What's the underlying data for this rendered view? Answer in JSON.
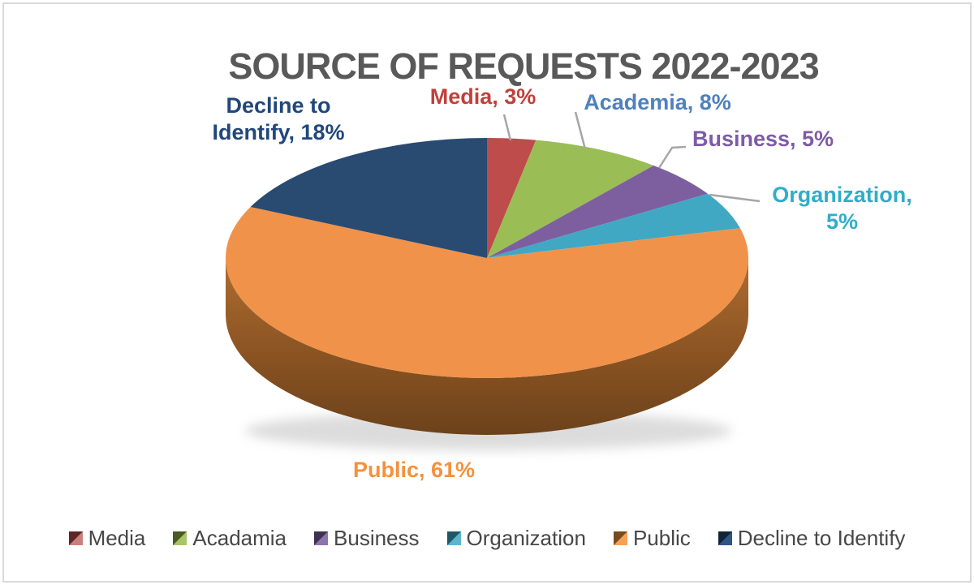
{
  "title": "SOURCE OF REQUESTS 2022-2023",
  "chart_data": {
    "type": "pie",
    "title": "SOURCE OF REQUESTS 2022-2023",
    "effect": "3d",
    "start_angle_deg": 0,
    "direction": "clockwise",
    "unit": "%",
    "slices": [
      {
        "label": "Media",
        "value": 3,
        "color": "#BE4C4B",
        "label_color": "#C0403B"
      },
      {
        "label": "Academia",
        "value": 8,
        "color": "#9BBD56",
        "label_color": "#4E81BD"
      },
      {
        "label": "Business",
        "value": 5,
        "color": "#7D5FA0",
        "label_color": "#7E5BA5"
      },
      {
        "label": "Organization",
        "value": 5,
        "color": "#41A8C4",
        "label_color": "#2FAEC8"
      },
      {
        "label": "Public",
        "value": 61,
        "color": "#F0924A",
        "label_color": "#F5913D"
      },
      {
        "label": "Decline to Identify",
        "value": 18,
        "color": "#294A71",
        "label_color": "#21477B"
      }
    ],
    "legend_position": "bottom",
    "grid": false
  },
  "data_labels": {
    "media": "Media, 3%",
    "academia": "Academia, 8%",
    "business": "Business, 5%",
    "organization_line1": "Organization,",
    "organization_line2": "5%",
    "public": "Public, 61%",
    "decline_line1": "Decline to",
    "decline_line2": "Identify, 18%"
  },
  "legend": {
    "items": [
      {
        "label": "Media",
        "swatch_dark": "#5E2626",
        "swatch_light": "#C97F7E"
      },
      {
        "label": "Acadamia",
        "swatch_dark": "#4A5A20",
        "swatch_light": "#A8C468"
      },
      {
        "label": "Business",
        "swatch_dark": "#3F3151",
        "swatch_light": "#8E74AE"
      },
      {
        "label": "Organization",
        "swatch_dark": "#1E5864",
        "swatch_light": "#5BB6CD"
      },
      {
        "label": "Public",
        "swatch_dark": "#7A4A1D",
        "swatch_light": "#F5A258"
      },
      {
        "label": "Decline to Identify",
        "swatch_dark": "#102437",
        "swatch_light": "#2F5584"
      }
    ]
  },
  "colors": {
    "title": "#595959",
    "legend_text": "#474747",
    "leader_line": "#A6A6A6",
    "side_top": "#AE6D31",
    "side_mid": "#8A5322",
    "side_bottom": "#6C421B"
  }
}
